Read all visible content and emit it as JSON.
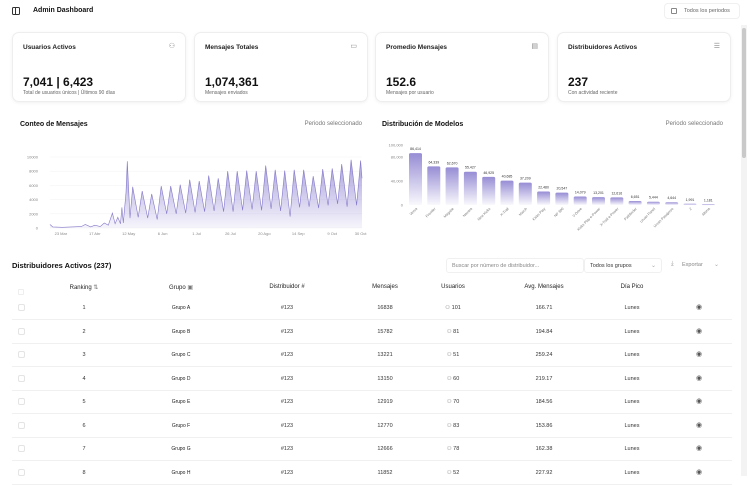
{
  "header": {
    "title": "Admin Dashboard",
    "period_button": "Todos los periodos",
    "sidebar_icon": "sidebar-toggle-icon",
    "calendar_icon": "calendar-icon"
  },
  "cards": [
    {
      "title": "Usuarios Activos",
      "value": "7,041 | 6,423",
      "subtitle": "Total de usuarios únicos | Últimos 90 días",
      "icon": "users-icon"
    },
    {
      "title": "Mensajes Totales",
      "value": "1,074,361",
      "subtitle": "Mensajes enviados",
      "icon": "message-icon"
    },
    {
      "title": "Promedio Mensajes",
      "value": "152.6",
      "subtitle": "Mensajes por usuario",
      "icon": "chart-icon"
    },
    {
      "title": "Distribuidores Activos",
      "value": "237",
      "subtitle": "Con actividad reciente",
      "icon": "list-icon"
    }
  ],
  "colors": {
    "accent": "#8b80d0",
    "accent_light": "#e4e1f5"
  },
  "chart_data": [
    {
      "type": "area",
      "title": "Conteo de Mensajes",
      "subtitle": "Periodo seleccionado",
      "ylim": [
        0,
        10000
      ],
      "yticks": [
        "0",
        "2000",
        "4000",
        "6000",
        "8000",
        "10000"
      ],
      "xticks": [
        [
          "03-23",
          "23 Mar"
        ],
        [
          "04-17",
          "17 Abr"
        ],
        [
          "05-12",
          "12 May"
        ],
        [
          "06-06",
          "6 Jun"
        ],
        [
          "07-01",
          "1 Jul"
        ],
        [
          "07-26",
          "26 Jul"
        ],
        [
          "08-20",
          "20 Ago"
        ],
        [
          "09-14",
          "14 Sep"
        ],
        [
          "10-09",
          "9 Oct"
        ],
        [
          "10-30",
          "30 Oct"
        ]
      ],
      "xrange": [
        "03-15",
        "10-31"
      ],
      "points": [
        [
          "03-15",
          500
        ],
        [
          "03-17",
          150
        ],
        [
          "03-24",
          100
        ],
        [
          "03-31",
          150
        ],
        [
          "04-07",
          200
        ],
        [
          "04-10",
          500
        ],
        [
          "04-14",
          150
        ],
        [
          "04-17",
          400
        ],
        [
          "04-21",
          200
        ],
        [
          "04-24",
          700
        ],
        [
          "04-27",
          400
        ],
        [
          "04-30",
          2100
        ],
        [
          "05-02",
          600
        ],
        [
          "05-04",
          1500
        ],
        [
          "05-06",
          600
        ],
        [
          "05-07",
          2900
        ],
        [
          "05-08",
          700
        ],
        [
          "05-10",
          5000
        ],
        [
          "05-11",
          9400
        ],
        [
          "05-13",
          1400
        ],
        [
          "05-15",
          5800
        ],
        [
          "05-19",
          1500
        ],
        [
          "05-22",
          5200
        ],
        [
          "05-26",
          1400
        ],
        [
          "05-29",
          4800
        ],
        [
          "06-02",
          1200
        ],
        [
          "06-05",
          5900
        ],
        [
          "06-09",
          2000
        ],
        [
          "06-12",
          5900
        ],
        [
          "06-16",
          2000
        ],
        [
          "06-19",
          6100
        ],
        [
          "06-23",
          2100
        ],
        [
          "06-26",
          6800
        ],
        [
          "06-30",
          2200
        ],
        [
          "07-03",
          6600
        ],
        [
          "07-07",
          2300
        ],
        [
          "07-10",
          7400
        ],
        [
          "07-14",
          2400
        ],
        [
          "07-17",
          7000
        ],
        [
          "07-21",
          2300
        ],
        [
          "07-24",
          8000
        ],
        [
          "07-28",
          2300
        ],
        [
          "07-31",
          8000
        ],
        [
          "08-04",
          2500
        ],
        [
          "08-07",
          8100
        ],
        [
          "08-11",
          2600
        ],
        [
          "08-14",
          8000
        ],
        [
          "08-18",
          2500
        ],
        [
          "08-21",
          8800
        ],
        [
          "08-25",
          2700
        ],
        [
          "08-28",
          8200
        ],
        [
          "09-01",
          2400
        ],
        [
          "09-04",
          8100
        ],
        [
          "09-08",
          1600
        ],
        [
          "09-11",
          8200
        ],
        [
          "09-15",
          2900
        ],
        [
          "09-18",
          8200
        ],
        [
          "09-22",
          3000
        ],
        [
          "09-25",
          7300
        ],
        [
          "09-29",
          2800
        ],
        [
          "10-02",
          8300
        ],
        [
          "10-06",
          3200
        ],
        [
          "10-09",
          8400
        ],
        [
          "10-13",
          3400
        ],
        [
          "10-16",
          9000
        ],
        [
          "10-20",
          3000
        ],
        [
          "10-23",
          9600
        ],
        [
          "10-27",
          3200
        ],
        [
          "10-30",
          9500
        ],
        [
          "10-31",
          7000
        ]
      ]
    },
    {
      "type": "bar",
      "title": "Distribución de Modelos",
      "subtitle": "Periodo seleccionado",
      "ylim": [
        0,
        100000
      ],
      "yticks": [
        "0",
        "40,000",
        "80,000",
        "100,000"
      ],
      "ytick_values": [
        0,
        40000,
        80000,
        100000
      ],
      "categories": [
        "Versa",
        "Frontier",
        "Magnite",
        "Navara",
        "New Kicks",
        "X-Trail",
        "March",
        "Kicks Play",
        "NP 300",
        "V-Drive",
        "Kicks Play e-Power",
        "X-Trail e-Power",
        "Pathfinder",
        "Urvan Panel",
        "Urvan Pasajeros",
        "Z",
        "Altima"
      ],
      "values": [
        86414,
        64339,
        62670,
        55427,
        46925,
        40685,
        37209,
        22480,
        20547,
        14079,
        13201,
        12616,
        6651,
        5444,
        4644,
        1991,
        1181
      ],
      "labels": [
        "86,414",
        "64,339",
        "62,670",
        "55,427",
        "46,925",
        "40,685",
        "37,209",
        "22,480",
        "20,547",
        "14,079",
        "13,201",
        "12,616",
        "6,651",
        "5,444",
        "4,644",
        "1,991",
        "1,181"
      ]
    }
  ],
  "table": {
    "title": "Distribuidores Activos (237)",
    "search_placeholder": "Buscar por número de distribuidor...",
    "group_select": "Todos los grupos",
    "export_label": "Exportar",
    "columns": [
      "Ranking",
      "Grupo",
      "Distribuidor #",
      "Mensajes",
      "Usuarios",
      "Avg. Mensajes",
      "Día Pico"
    ],
    "rows": [
      [
        "1",
        "Grupo A",
        "#123",
        "16838",
        "101",
        "166.71",
        "Lunes"
      ],
      [
        "2",
        "Grupo B",
        "#123",
        "15782",
        "81",
        "194.84",
        "Lunes"
      ],
      [
        "3",
        "Grupo C",
        "#123",
        "13221",
        "51",
        "259.24",
        "Lunes"
      ],
      [
        "4",
        "Grupo D",
        "#123",
        "13150",
        "60",
        "219.17",
        "Lunes"
      ],
      [
        "5",
        "Grupo E",
        "#123",
        "12919",
        "70",
        "184.56",
        "Lunes"
      ],
      [
        "6",
        "Grupo F",
        "#123",
        "12770",
        "83",
        "153.86",
        "Lunes"
      ],
      [
        "7",
        "Grupo G",
        "#123",
        "12666",
        "78",
        "162.38",
        "Lunes"
      ],
      [
        "8",
        "Grupo H",
        "#123",
        "11852",
        "52",
        "227.92",
        "Lunes"
      ]
    ]
  }
}
